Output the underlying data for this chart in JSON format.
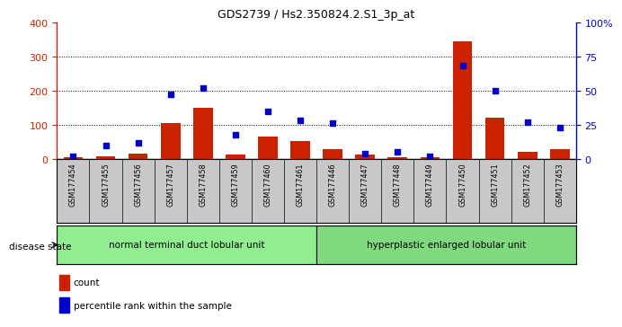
{
  "title": "GDS2739 / Hs2.350824.2.S1_3p_at",
  "samples": [
    "GSM177454",
    "GSM177455",
    "GSM177456",
    "GSM177457",
    "GSM177458",
    "GSM177459",
    "GSM177460",
    "GSM177461",
    "GSM177446",
    "GSM177447",
    "GSM177448",
    "GSM177449",
    "GSM177450",
    "GSM177451",
    "GSM177452",
    "GSM177453"
  ],
  "counts": [
    5,
    8,
    15,
    105,
    150,
    12,
    65,
    52,
    30,
    12,
    5,
    5,
    345,
    120,
    22,
    28
  ],
  "percentiles": [
    2,
    10,
    12,
    47,
    52,
    18,
    35,
    28,
    26,
    4,
    5,
    2,
    68,
    50,
    27,
    23
  ],
  "groups": [
    {
      "label": "normal terminal duct lobular unit",
      "start": 0,
      "end": 7,
      "color": "#90EE90"
    },
    {
      "label": "hyperplastic enlarged lobular unit",
      "start": 8,
      "end": 15,
      "color": "#7FD97F"
    }
  ],
  "bar_color": "#CC2200",
  "square_color": "#0000CC",
  "left_ylim": [
    0,
    400
  ],
  "right_ylim": [
    0,
    100
  ],
  "left_yticks": [
    0,
    100,
    200,
    300,
    400
  ],
  "right_yticks": [
    0,
    25,
    50,
    75,
    100
  ],
  "right_yticklabels": [
    "0",
    "25",
    "50",
    "75",
    "100%"
  ],
  "grid_dotted_at": [
    100,
    200,
    300
  ],
  "axis_color_left": "#CC2200",
  "axis_color_right": "#0000CC",
  "disease_state_label": "disease state",
  "legend_count_label": "count",
  "legend_percentile_label": "percentile rank within the sample",
  "plot_bg": "#ffffff",
  "xtick_bg": "#c8c8c8",
  "xtick_divider_color": "#888888"
}
